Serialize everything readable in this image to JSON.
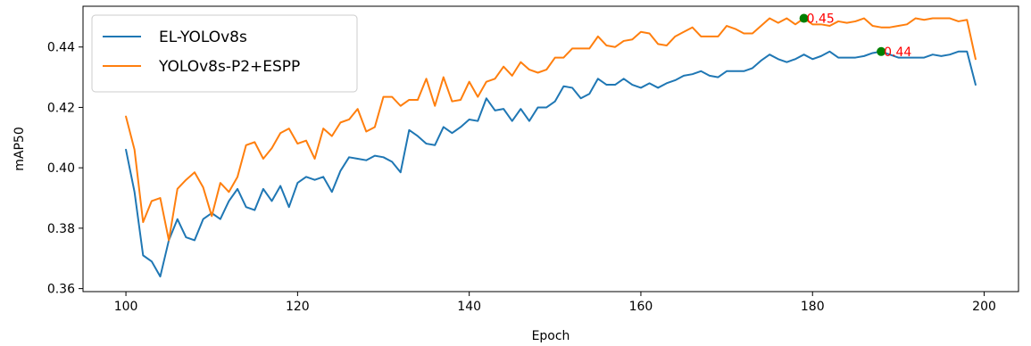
{
  "chart_data": {
    "type": "line",
    "xlabel": "Epoch",
    "ylabel": "mAP50",
    "xlim": [
      95,
      204
    ],
    "ylim": [
      0.359,
      0.4535
    ],
    "x_ticks": [
      100,
      120,
      140,
      160,
      180,
      200
    ],
    "y_ticks": [
      0.36,
      0.38,
      0.4,
      0.42,
      0.44
    ],
    "grid": false,
    "legend_position": "upper-left",
    "x": [
      100,
      101,
      102,
      103,
      104,
      105,
      106,
      107,
      108,
      109,
      110,
      111,
      112,
      113,
      114,
      115,
      116,
      117,
      118,
      119,
      120,
      121,
      122,
      123,
      124,
      125,
      126,
      127,
      128,
      129,
      130,
      131,
      132,
      133,
      134,
      135,
      136,
      137,
      138,
      139,
      140,
      141,
      142,
      143,
      144,
      145,
      146,
      147,
      148,
      149,
      150,
      151,
      152,
      153,
      154,
      155,
      156,
      157,
      158,
      159,
      160,
      161,
      162,
      163,
      164,
      165,
      166,
      167,
      168,
      169,
      170,
      171,
      172,
      173,
      174,
      175,
      176,
      177,
      178,
      179,
      180,
      181,
      182,
      183,
      184,
      185,
      186,
      187,
      188,
      189,
      190,
      191,
      192,
      193,
      194,
      195,
      196,
      197,
      198,
      199
    ],
    "series": [
      {
        "name": "EL-YOLOv8s",
        "color": "#1f77b4",
        "values": [
          0.406,
          0.392,
          0.371,
          0.369,
          0.364,
          0.376,
          0.383,
          0.377,
          0.376,
          0.383,
          0.385,
          0.383,
          0.389,
          0.393,
          0.387,
          0.386,
          0.393,
          0.389,
          0.394,
          0.387,
          0.395,
          0.397,
          0.396,
          0.397,
          0.392,
          0.399,
          0.4035,
          0.403,
          0.4025,
          0.404,
          0.4035,
          0.402,
          0.3985,
          0.4125,
          0.4105,
          0.408,
          0.4075,
          0.4135,
          0.4115,
          0.4135,
          0.416,
          0.4155,
          0.423,
          0.419,
          0.4195,
          0.4155,
          0.4195,
          0.4155,
          0.42,
          0.42,
          0.422,
          0.427,
          0.4265,
          0.423,
          0.4245,
          0.4295,
          0.4275,
          0.4275,
          0.4295,
          0.4275,
          0.4265,
          0.428,
          0.4265,
          0.428,
          0.429,
          0.4305,
          0.431,
          0.432,
          0.4305,
          0.43,
          0.432,
          0.432,
          0.432,
          0.433,
          0.4355,
          0.4375,
          0.436,
          0.435,
          0.436,
          0.4375,
          0.436,
          0.437,
          0.4385,
          0.4365,
          0.4365,
          0.4365,
          0.437,
          0.438,
          0.4385,
          0.4375,
          0.4365,
          0.4365,
          0.4365,
          0.4365,
          0.4375,
          0.437,
          0.4375,
          0.4385,
          0.4385,
          0.4275
        ]
      },
      {
        "name": "YOLOv8s-P2+ESPP",
        "color": "#ff7f0e",
        "values": [
          0.417,
          0.406,
          0.382,
          0.389,
          0.39,
          0.376,
          0.393,
          0.396,
          0.3985,
          0.3935,
          0.384,
          0.395,
          0.392,
          0.397,
          0.4075,
          0.4085,
          0.403,
          0.4065,
          0.4115,
          0.413,
          0.408,
          0.409,
          0.403,
          0.413,
          0.4105,
          0.415,
          0.416,
          0.4195,
          0.412,
          0.4135,
          0.4235,
          0.4235,
          0.4205,
          0.4225,
          0.4225,
          0.4295,
          0.4205,
          0.43,
          0.422,
          0.4225,
          0.4285,
          0.4235,
          0.4285,
          0.4295,
          0.4335,
          0.4305,
          0.435,
          0.4325,
          0.4315,
          0.4325,
          0.4365,
          0.4365,
          0.4395,
          0.4395,
          0.4395,
          0.4435,
          0.4405,
          0.44,
          0.442,
          0.4425,
          0.445,
          0.4445,
          0.441,
          0.4405,
          0.4435,
          0.445,
          0.4465,
          0.4435,
          0.4435,
          0.4435,
          0.447,
          0.446,
          0.4445,
          0.4445,
          0.447,
          0.4495,
          0.448,
          0.4495,
          0.4475,
          0.4495,
          0.4475,
          0.4475,
          0.447,
          0.4485,
          0.448,
          0.4485,
          0.4495,
          0.447,
          0.4465,
          0.4465,
          0.447,
          0.4475,
          0.4495,
          0.449,
          0.4495,
          0.4495,
          0.4495,
          0.4485,
          0.449,
          0.436
        ]
      }
    ],
    "annotations": [
      {
        "x": 179,
        "y": 0.4495,
        "label": "0.45",
        "marker_color": "#008000",
        "text_color": "#ff0000"
      },
      {
        "x": 188,
        "y": 0.4385,
        "label": "0.44",
        "marker_color": "#008000",
        "text_color": "#ff0000"
      }
    ]
  }
}
